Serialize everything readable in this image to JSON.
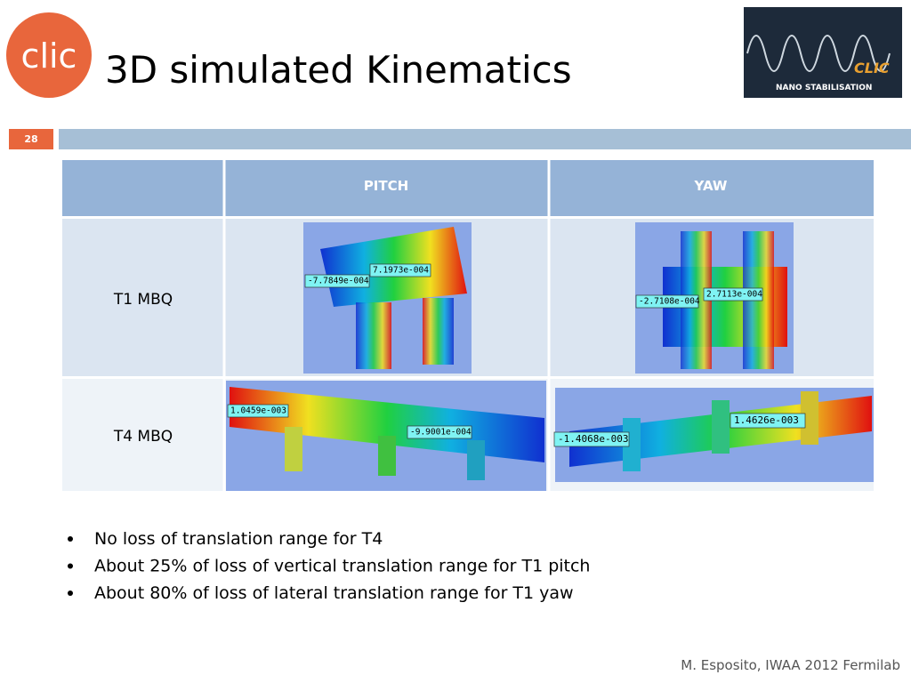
{
  "header": {
    "title": "3D simulated Kinematics",
    "slide_number": "28"
  },
  "logos": {
    "left": "clic",
    "right": [
      "CLIC",
      "NANO STABILISATION"
    ]
  },
  "table": {
    "columns": [
      "PITCH",
      "YAW"
    ],
    "rows": [
      {
        "label": "T1 MBQ",
        "pitch": [
          "7.1973e-004",
          "-7.7849e-004"
        ],
        "yaw": [
          "2.7113e-004",
          "-2.7108e-004"
        ]
      },
      {
        "label": "T4 MBQ",
        "pitch": [
          "1.0459e-003",
          "-9.9001e-004"
        ],
        "yaw": [
          "1.4626e-003",
          "-1.4068e-003"
        ]
      }
    ]
  },
  "bullets": [
    "No loss of translation range for T4",
    "About 25% of loss of vertical translation range for T1 pitch",
    "About 80% of loss of lateral translation range for T1 yaw"
  ],
  "footer": "M. Esposito, IWAA 2012 Fermilab"
}
